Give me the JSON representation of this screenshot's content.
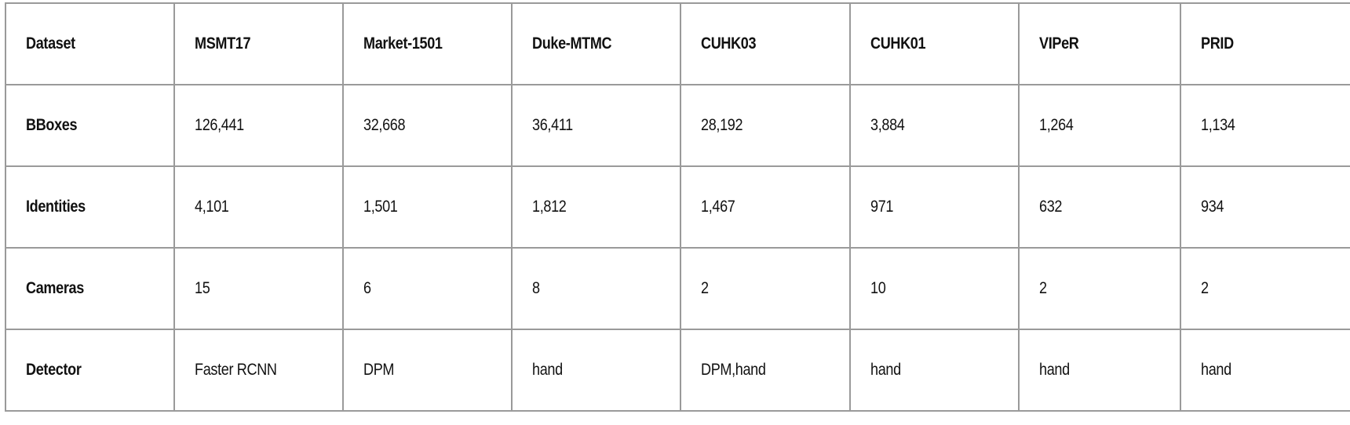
{
  "table": {
    "header": [
      "Dataset",
      "MSMT17",
      "Market-1501",
      "Duke-MTMC",
      "CUHK03",
      "CUHK01",
      "VIPeR",
      "PRID"
    ],
    "rows": [
      {
        "label": "BBoxes",
        "values": [
          "126,441",
          "32,668",
          "36,411",
          "28,192",
          "3,884",
          "1,264",
          "1,134"
        ]
      },
      {
        "label": "Identities",
        "values": [
          "4,101",
          "1,501",
          "1,812",
          "1,467",
          "971",
          "632",
          "934"
        ]
      },
      {
        "label": "Cameras",
        "values": [
          "15",
          "6",
          "8",
          "2",
          "10",
          "2",
          "2"
        ]
      },
      {
        "label": "Detector",
        "values": [
          "Faster RCNN",
          "DPM",
          "hand",
          "DPM,hand",
          "hand",
          "hand",
          "hand"
        ]
      }
    ]
  },
  "colors": {
    "border": "#9a9a9a",
    "text": "#111111",
    "background": "#ffffff"
  }
}
